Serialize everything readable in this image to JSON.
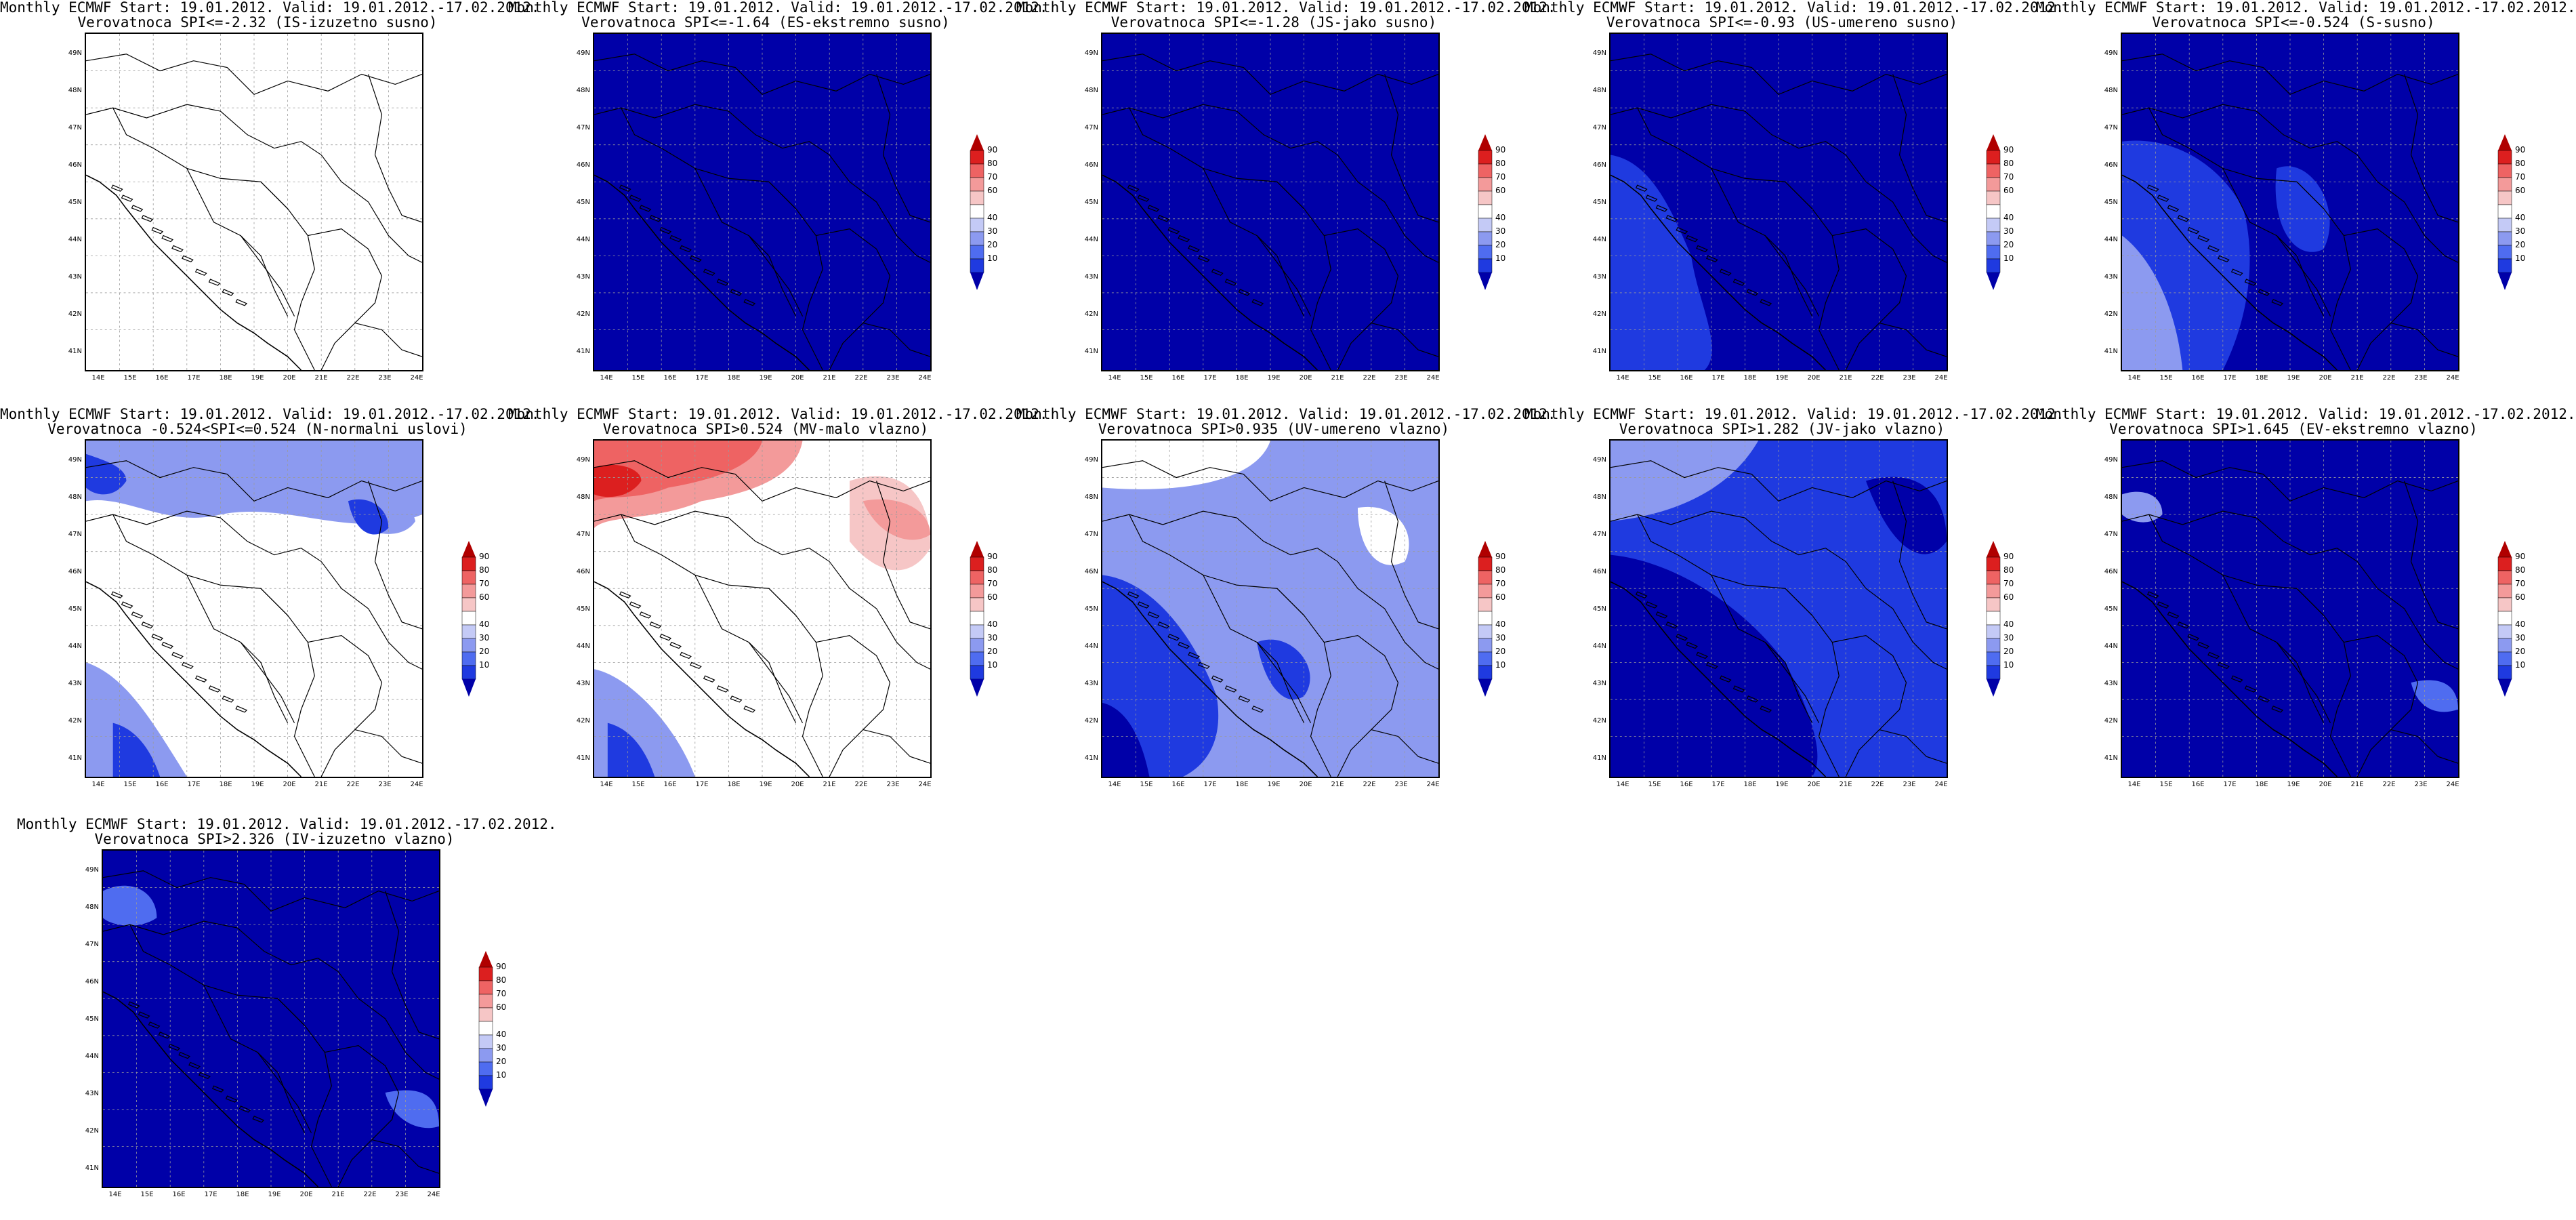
{
  "colors": {
    "deep_blue": "#0000a8",
    "blue": "#1f3ae0",
    "mid_blue": "#4f6cf0",
    "light_blue": "#8c9af0",
    "pale_blue": "#c4caf6",
    "white": "#ffffff",
    "pale_red": "#f6c6c6",
    "light_red": "#f39a9a",
    "mid_red": "#ee6363",
    "red": "#dc1f1f",
    "deep_red": "#b00000"
  },
  "legend_ticks": [
    "90",
    "80",
    "70",
    "60",
    "40",
    "30",
    "20",
    "10"
  ],
  "y_ticks": [
    "49N",
    "48N",
    "47N",
    "46N",
    "45N",
    "44N",
    "43N",
    "42N",
    "41N"
  ],
  "x_ticks": [
    "14E",
    "15E",
    "16E",
    "17E",
    "18E",
    "19E",
    "20E",
    "21E",
    "22E",
    "23E",
    "24E"
  ],
  "panels": [
    {
      "title1": "Monthly ECMWF Start: 19.01.2012. Valid: 19.01.2012.-17.02.2012.",
      "title2": "Verovatnoca SPI<=-2.32 (IS-izuzetno susno)",
      "legend": false,
      "fill": "white"
    },
    {
      "title1": "Monthly ECMWF Start: 19.01.2012. Valid: 19.01.2012.-17.02.2012.",
      "title2": "Verovatnoca SPI<=-1.64 (ES-ekstremno susno)",
      "legend": true,
      "fill": "deep_blue"
    },
    {
      "title1": "Monthly ECMWF Start: 19.01.2012. Valid: 19.01.2012.-17.02.2012.",
      "title2": "Verovatnoca SPI<=-1.28 (JS-jako susno)",
      "legend": true,
      "fill": "deep_blue"
    },
    {
      "title1": "Monthly ECMWF Start: 19.01.2012. Valid: 19.01.2012.-17.02.2012.",
      "title2": "Verovatnoca SPI<=-0.93 (US-umereno susno)",
      "legend": true,
      "fill": "deep_blue"
    },
    {
      "title1": "Monthly ECMWF Start: 19.01.2012. Valid: 19.01.2012.-17.02.2012.",
      "title2": "Verovatnoca SPI<=-0.524 (S-susno)",
      "legend": true,
      "fill": "deep_blue"
    },
    {
      "title1": "Monthly ECMWF Start: 19.01.2012. Valid: 19.01.2012.-17.02.2012.",
      "title2": "Verovatnoca  -0.524<SPI<=0.524 (N-normalni uslovi)",
      "legend": true,
      "fill": "white"
    },
    {
      "title1": "Monthly ECMWF Start: 19.01.2012. Valid: 19.01.2012.-17.02.2012.",
      "title2": "Verovatnoca SPI>0.524 (MV-malo vlazno)",
      "legend": true,
      "fill": "white"
    },
    {
      "title1": "Monthly ECMWF Start: 19.01.2012. Valid: 19.01.2012.-17.02.2012.",
      "title2": "Verovatnoca SPI>0.935 (UV-umereno vlazno)",
      "legend": true,
      "fill": "light_blue"
    },
    {
      "title1": "Monthly ECMWF Start: 19.01.2012. Valid: 19.01.2012.-17.02.2012.",
      "title2": "Verovatnoca SPI>1.282 (JV-jako vlazno)",
      "legend": true,
      "fill": "blue"
    },
    {
      "title1": "Monthly ECMWF Start: 19.01.2012. Valid: 19.01.2012.-17.02.2012.",
      "title2": "Verovatnoca SPI>1.645 (EV-ekstremno vlazno)",
      "legend": true,
      "fill": "deep_blue"
    },
    {
      "title1": "Monthly ECMWF Start: 19.01.2012. Valid: 19.01.2012.-17.02.2012.",
      "title2": "Verovatnoca SPI>2.326 (IV-izuzetno vlazno)",
      "legend": true,
      "fill": "deep_blue"
    }
  ]
}
